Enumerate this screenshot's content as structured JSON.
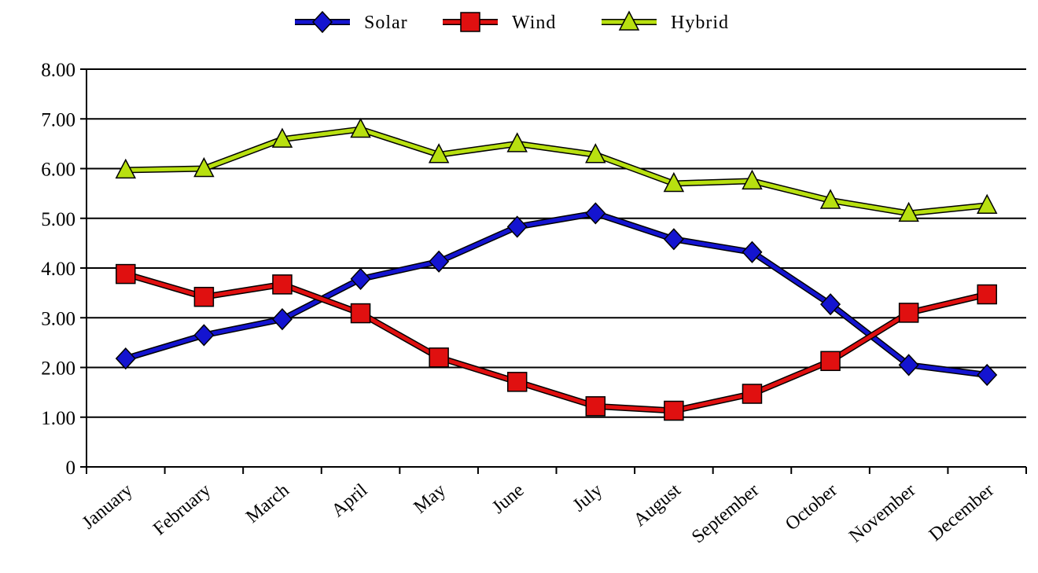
{
  "chart_data": {
    "type": "line",
    "title": "",
    "xlabel": "",
    "ylabel": "",
    "categories": [
      "January",
      "February",
      "March",
      "April",
      "May",
      "June",
      "July",
      "August",
      "September",
      "October",
      "November",
      "December"
    ],
    "ylim": [
      0,
      8
    ],
    "yticks": [
      "0",
      "1.00",
      "2.00",
      "3.00",
      "4.00",
      "5.00",
      "6.00",
      "7.00",
      "8.00"
    ],
    "grid": true,
    "legend_position": "top",
    "series": [
      {
        "name": "Solar",
        "color": "#1414d0",
        "marker": "diamond",
        "values": [
          2.18,
          2.65,
          2.97,
          3.78,
          4.13,
          4.83,
          5.1,
          4.58,
          4.32,
          3.27,
          2.05,
          1.85
        ]
      },
      {
        "name": "Wind",
        "color": "#e01010",
        "marker": "square",
        "values": [
          3.88,
          3.42,
          3.67,
          3.09,
          2.2,
          1.71,
          1.22,
          1.13,
          1.47,
          2.13,
          3.1,
          3.47
        ]
      },
      {
        "name": "Hybrid",
        "color": "#b8e010",
        "marker": "triangle",
        "values": [
          5.97,
          6.0,
          6.59,
          6.79,
          6.28,
          6.5,
          6.28,
          5.7,
          5.75,
          5.36,
          5.1,
          5.26
        ]
      }
    ]
  }
}
